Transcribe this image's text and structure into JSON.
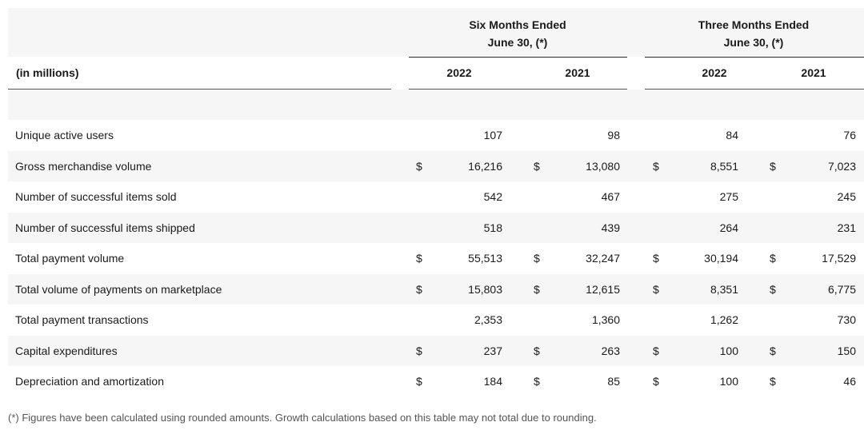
{
  "header": {
    "group1_line1": "Six Months Ended",
    "group1_line2": "June 30, (*)",
    "group2_line1": "Three Months Ended",
    "group2_line2": "June 30, (*)",
    "label": "(in millions)",
    "years": [
      "2022",
      "2021",
      "2022",
      "2021"
    ]
  },
  "rows": [
    {
      "label": "Unique active users",
      "dollar": [
        false,
        false,
        false,
        false
      ],
      "values": [
        "107",
        "98",
        "84",
        "76"
      ]
    },
    {
      "label": "Gross merchandise volume",
      "dollar": [
        true,
        true,
        true,
        true
      ],
      "values": [
        "16,216",
        "13,080",
        "8,551",
        "7,023"
      ]
    },
    {
      "label": "Number of successful items sold",
      "dollar": [
        false,
        false,
        false,
        false
      ],
      "values": [
        "542",
        "467",
        "275",
        "245"
      ]
    },
    {
      "label": "Number of successful items shipped",
      "dollar": [
        false,
        false,
        false,
        false
      ],
      "values": [
        "518",
        "439",
        "264",
        "231"
      ]
    },
    {
      "label": "Total payment volume",
      "dollar": [
        true,
        true,
        true,
        true
      ],
      "values": [
        "55,513",
        "32,247",
        "30,194",
        "17,529"
      ]
    },
    {
      "label": "Total volume of payments on marketplace",
      "dollar": [
        true,
        true,
        true,
        true
      ],
      "values": [
        "15,803",
        "12,615",
        "8,351",
        "6,775"
      ]
    },
    {
      "label": "Total payment transactions",
      "dollar": [
        false,
        false,
        false,
        false
      ],
      "values": [
        "2,353",
        "1,360",
        "1,262",
        "730"
      ]
    },
    {
      "label": "Capital expenditures",
      "dollar": [
        true,
        true,
        true,
        true
      ],
      "values": [
        "237",
        "263",
        "100",
        "150"
      ]
    },
    {
      "label": "Depreciation and amortization",
      "dollar": [
        true,
        true,
        true,
        true
      ],
      "values": [
        "184",
        "85",
        "100",
        "46"
      ]
    }
  ],
  "currency_symbol": "$",
  "footnote": "(*) Figures have been calculated using rounded amounts. Growth calculations based on this table may not total due to rounding."
}
